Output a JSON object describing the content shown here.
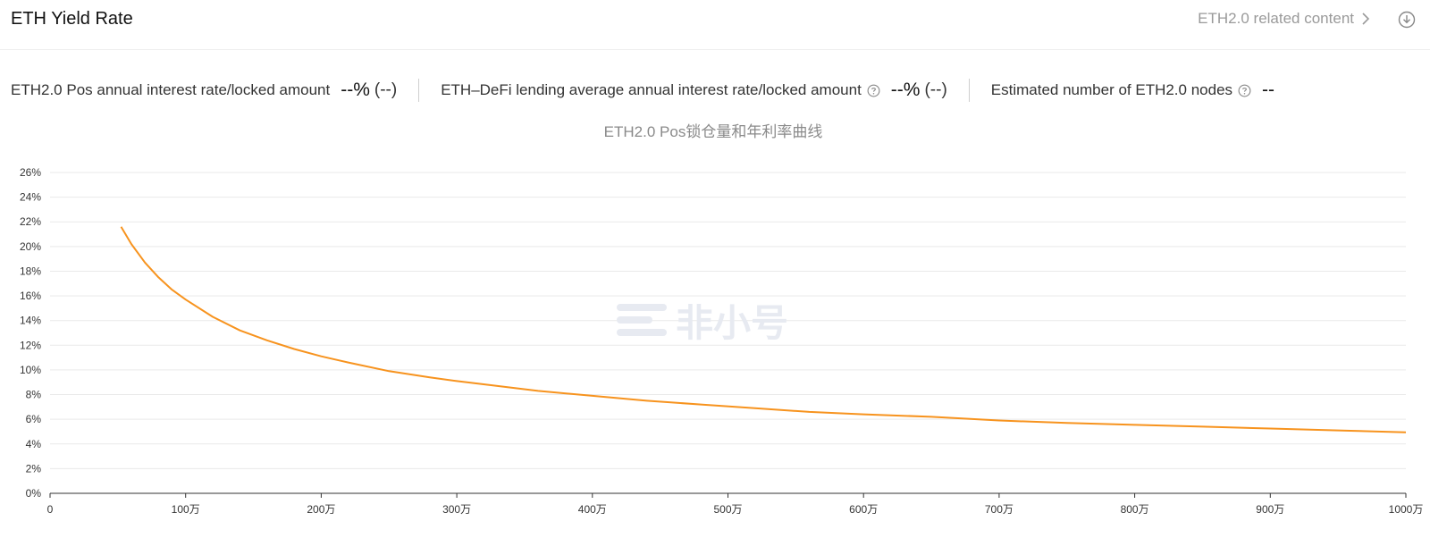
{
  "header": {
    "title": "ETH Yield Rate",
    "related_link": "ETH2.0 related content"
  },
  "stats": [
    {
      "label": "ETH2.0 Pos annual interest rate/locked amount",
      "value": "--%",
      "sub": "(--)",
      "has_help": false
    },
    {
      "label": "ETH–DeFi lending average annual interest rate/locked amount",
      "value": "--%",
      "sub": "(--)",
      "has_help": true
    },
    {
      "label": "Estimated number of ETH2.0 nodes",
      "value": "--",
      "sub": "",
      "has_help": true
    }
  ],
  "watermark": {
    "text": "非小号"
  },
  "colors": {
    "line": "#f7931e",
    "grid": "#e9e9e9",
    "axis": "#333333"
  },
  "chart_data": {
    "type": "line",
    "title": "ETH2.0 Pos锁仓量和年利率曲线",
    "xlabel": "",
    "ylabel": "",
    "xlim": [
      0,
      10000000
    ],
    "ylim": [
      0,
      26
    ],
    "x_ticks": [
      {
        "value": 0,
        "label": "0"
      },
      {
        "value": 1000000,
        "label": "100万"
      },
      {
        "value": 2000000,
        "label": "200万"
      },
      {
        "value": 3000000,
        "label": "300万"
      },
      {
        "value": 4000000,
        "label": "400万"
      },
      {
        "value": 5000000,
        "label": "500万"
      },
      {
        "value": 6000000,
        "label": "600万"
      },
      {
        "value": 7000000,
        "label": "700万"
      },
      {
        "value": 8000000,
        "label": "800万"
      },
      {
        "value": 9000000,
        "label": "900万"
      },
      {
        "value": 10000000,
        "label": "1000万"
      }
    ],
    "y_ticks": [
      {
        "value": 0,
        "label": "0%"
      },
      {
        "value": 2,
        "label": "2%"
      },
      {
        "value": 4,
        "label": "4%"
      },
      {
        "value": 6,
        "label": "6%"
      },
      {
        "value": 8,
        "label": "8%"
      },
      {
        "value": 10,
        "label": "10%"
      },
      {
        "value": 12,
        "label": "12%"
      },
      {
        "value": 14,
        "label": "14%"
      },
      {
        "value": 16,
        "label": "16%"
      },
      {
        "value": 18,
        "label": "18%"
      },
      {
        "value": 20,
        "label": "20%"
      },
      {
        "value": 22,
        "label": "22%"
      },
      {
        "value": 24,
        "label": "24%"
      },
      {
        "value": 26,
        "label": "26%"
      }
    ],
    "grid": true,
    "series": [
      {
        "x": [
          524288,
          600000,
          700000,
          800000,
          900000,
          1000000,
          1200000,
          1400000,
          1600000,
          1800000,
          2000000,
          2200000,
          2500000,
          2800000,
          3000000,
          3300000,
          3600000,
          4000000,
          4400000,
          4800000,
          5200000,
          5600000,
          6000000,
          6500000,
          7000000,
          7500000,
          8000000,
          8500000,
          9000000,
          9500000,
          10000000
        ],
        "y": [
          21.6,
          20.2,
          18.7,
          17.5,
          16.5,
          15.7,
          14.3,
          13.2,
          12.4,
          11.7,
          11.1,
          10.6,
          9.9,
          9.4,
          9.1,
          8.7,
          8.3,
          7.9,
          7.5,
          7.2,
          6.9,
          6.6,
          6.4,
          6.2,
          5.9,
          5.7,
          5.55,
          5.4,
          5.25,
          5.1,
          4.95
        ]
      }
    ]
  }
}
